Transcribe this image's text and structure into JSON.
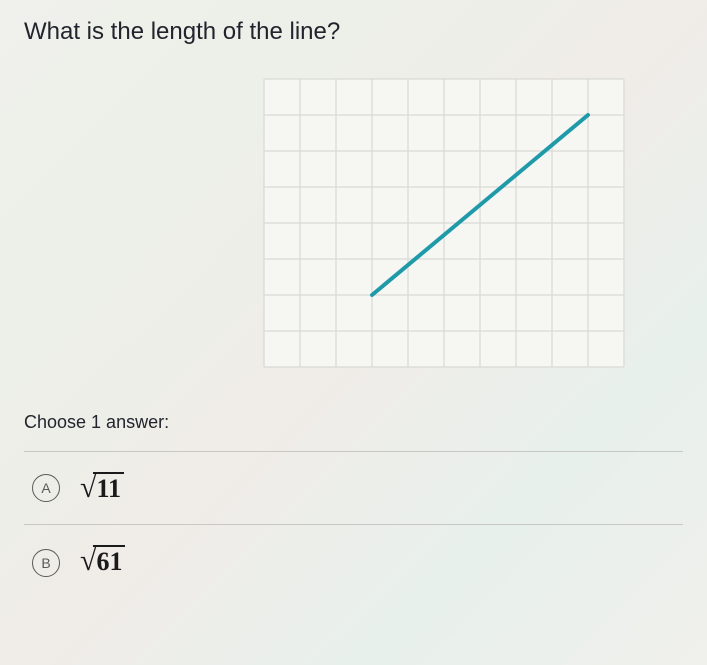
{
  "question": "What is the length of the line?",
  "chart": {
    "type": "grid-line",
    "grid": {
      "cols": 10,
      "rows": 8,
      "cell": 36
    },
    "grid_color": "#d9d9d4",
    "background_color": "#f6f6f3",
    "line": {
      "from": [
        3,
        6
      ],
      "to": [
        9,
        1
      ]
    },
    "line_color": "#1f9aa8",
    "line_width": 4
  },
  "prompt": "Choose 1 answer:",
  "options": [
    {
      "letter": "A",
      "radicand": "11"
    },
    {
      "letter": "B",
      "radicand": "61"
    }
  ]
}
